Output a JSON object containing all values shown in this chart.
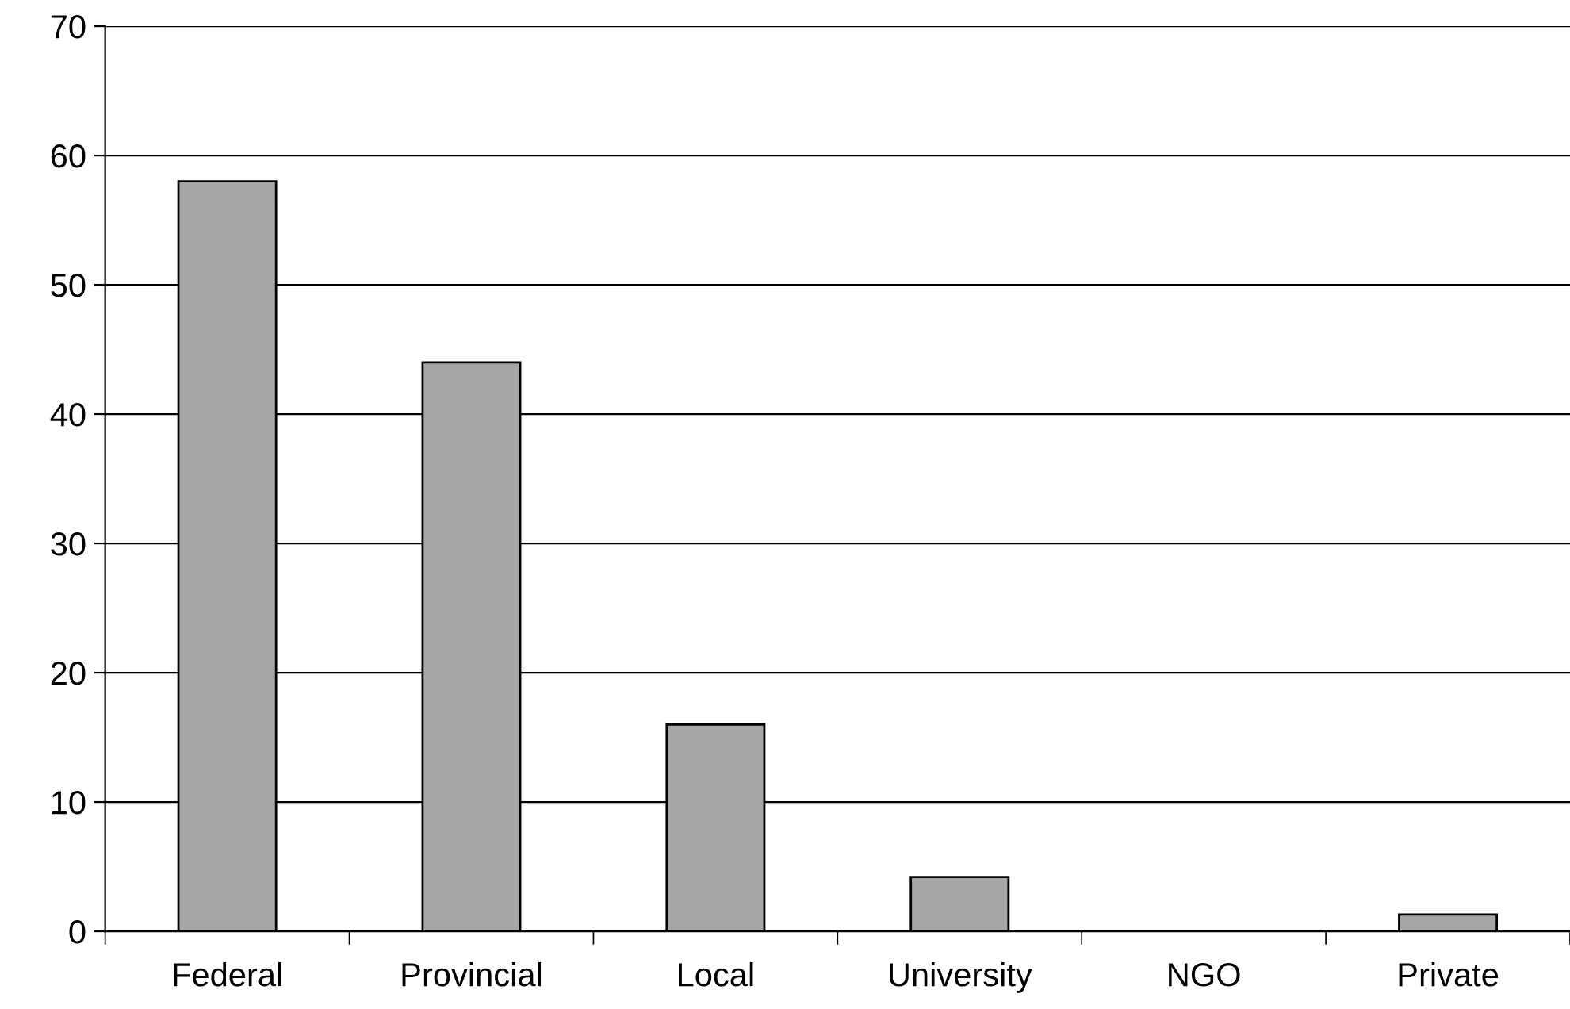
{
  "chart_data": {
    "type": "bar",
    "categories": [
      "Federal",
      "Provincial",
      "Local",
      "University",
      "NGO",
      "Private"
    ],
    "values": [
      58,
      44,
      16,
      4.2,
      0,
      1.3
    ],
    "color": "#a6a6a6",
    "ylim": [
      0,
      70
    ],
    "yticks": [
      0,
      10,
      20,
      30,
      40,
      50,
      60,
      70
    ],
    "grid": "y"
  }
}
